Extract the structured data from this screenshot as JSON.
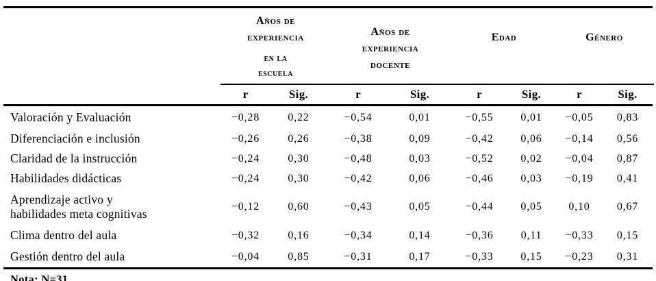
{
  "table": {
    "column_groups": [
      {
        "label": "Años de experiencia en la escuela",
        "lines": [
          "Años de",
          "experiencia",
          "en la",
          "escuela"
        ]
      },
      {
        "label": "Años de experiencia docente",
        "lines": [
          "Años de",
          "experiencia",
          "docente"
        ]
      },
      {
        "label": "Edad",
        "lines": [
          "Edad"
        ]
      },
      {
        "label": "Género",
        "lines": [
          "Género"
        ]
      }
    ],
    "subheaders": {
      "r": "r",
      "sig": "Sig."
    },
    "rows": [
      {
        "label": "Valoración y Evaluación",
        "label_lines": [
          "Valoración y Evaluación"
        ],
        "values": [
          "−0,28",
          "0,22",
          "−0,54",
          "0,01",
          "−0,55",
          "0,01",
          "−0,05",
          "0,83"
        ]
      },
      {
        "label": "Diferenciación e inclusión",
        "label_lines": [
          "Diferenciación e inclusión"
        ],
        "values": [
          "−0,26",
          "0,26",
          "−0,38",
          "0,09",
          "−0,42",
          "0,06",
          "−0,14",
          "0,56"
        ]
      },
      {
        "label": "Claridad de la instrucción",
        "label_lines": [
          "Claridad de la instrucción"
        ],
        "values": [
          "−0,24",
          "0,30",
          "−0,48",
          "0,03",
          "−0,52",
          "0,02",
          "−0,04",
          "0,87"
        ]
      },
      {
        "label": "Habilidades didácticas",
        "label_lines": [
          "Habilidades didácticas"
        ],
        "values": [
          "−0,24",
          "0,30",
          "−0,42",
          "0,06",
          "−0,46",
          "0,03",
          "−0,19",
          "0,41"
        ]
      },
      {
        "label": "Aprendizaje activo y habilidades meta cognitivas",
        "label_lines": [
          "Aprendizaje activo y",
          "habilidades meta cognitivas"
        ],
        "values": [
          "−0,12",
          "0,60",
          "−0,43",
          "0,05",
          "−0,44",
          "0,05",
          "0,10",
          "0,67"
        ]
      },
      {
        "label": "Clima dentro del aula",
        "label_lines": [
          "Clima dentro del aula"
        ],
        "values": [
          "−0,32",
          "0,16",
          "−0,34",
          "0,14",
          "−0,36",
          "0,11",
          "−0,33",
          "0,15"
        ]
      },
      {
        "label": "Gestión dentro del aula",
        "label_lines": [
          "Gestión dentro del aula"
        ],
        "values": [
          "−0,04",
          "0,85",
          "−0,31",
          "0,17",
          "−0,33",
          "0,15",
          "−0,23",
          "0,31"
        ]
      }
    ],
    "note": "Nota: N=31"
  },
  "colors": {
    "background": "#ffffff",
    "text": "#000000",
    "rule": "#000000"
  }
}
